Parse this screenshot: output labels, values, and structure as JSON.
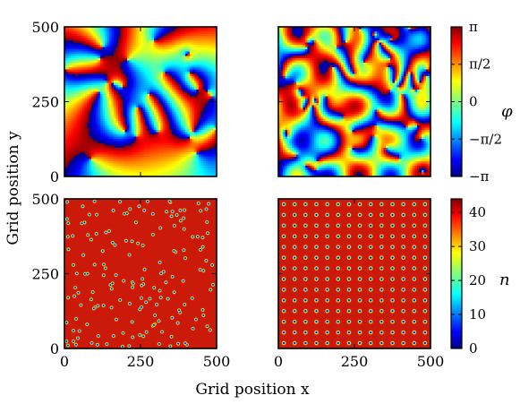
{
  "figure": {
    "xlabel": "Grid position x",
    "ylabel": "Grid position y"
  },
  "chart_data": [
    {
      "type": "heatmap",
      "panel": "top-left",
      "description_visible": "phase field, disordered vortex texture",
      "colorbar_ref": "phase",
      "x_ticks": [
        "",
        "",
        ""
      ],
      "y_ticks": [
        "500",
        "250",
        "0"
      ],
      "xlim": [
        0,
        500
      ],
      "ylim": [
        0,
        500
      ]
    },
    {
      "type": "heatmap",
      "panel": "top-right",
      "colorbar_ref": "phase",
      "x_ticks": [
        "",
        "",
        ""
      ],
      "y_ticks": [
        "",
        "",
        ""
      ],
      "xlim": [
        0,
        500
      ],
      "ylim": [
        0,
        500
      ]
    },
    {
      "type": "heatmap",
      "panel": "bottom-left",
      "colorbar_ref": "density",
      "x_ticks": [
        "0",
        "250",
        "500"
      ],
      "y_ticks": [
        "500",
        "250",
        "0"
      ],
      "xlim": [
        0,
        500
      ],
      "ylim": [
        0,
        500
      ]
    },
    {
      "type": "heatmap",
      "panel": "bottom-right",
      "colorbar_ref": "density",
      "lattice_rows": 14,
      "lattice_cols": 14,
      "x_ticks": [
        "0",
        "250",
        "500"
      ],
      "y_ticks": [
        "",
        "",
        ""
      ],
      "xlim": [
        0,
        500
      ],
      "ylim": [
        0,
        500
      ]
    }
  ],
  "colorbars": {
    "phase": {
      "label": "φ",
      "colormap": "jet",
      "range": [
        -3.14159,
        3.14159
      ],
      "ticks": [
        {
          "value": 3.14159,
          "label": "π"
        },
        {
          "value": 1.5708,
          "label": "π/2"
        },
        {
          "value": 0,
          "label": "0"
        },
        {
          "value": -1.5708,
          "label": "−π/2"
        },
        {
          "value": -3.14159,
          "label": "−π"
        }
      ]
    },
    "density": {
      "label": "n",
      "colormap": "jet",
      "range": [
        0,
        44
      ],
      "ticks": [
        {
          "value": 40,
          "label": "40"
        },
        {
          "value": 30,
          "label": "30"
        },
        {
          "value": 20,
          "label": "20"
        },
        {
          "value": 10,
          "label": "10"
        },
        {
          "value": 0,
          "label": "0"
        }
      ]
    }
  },
  "colors": {
    "jet_stops": [
      "#00007f",
      "#0000ff",
      "#007fff",
      "#00ffff",
      "#7fff7f",
      "#ffff00",
      "#ff7f00",
      "#ff0000",
      "#7f0000"
    ],
    "density_background": "#cc1a0a"
  }
}
